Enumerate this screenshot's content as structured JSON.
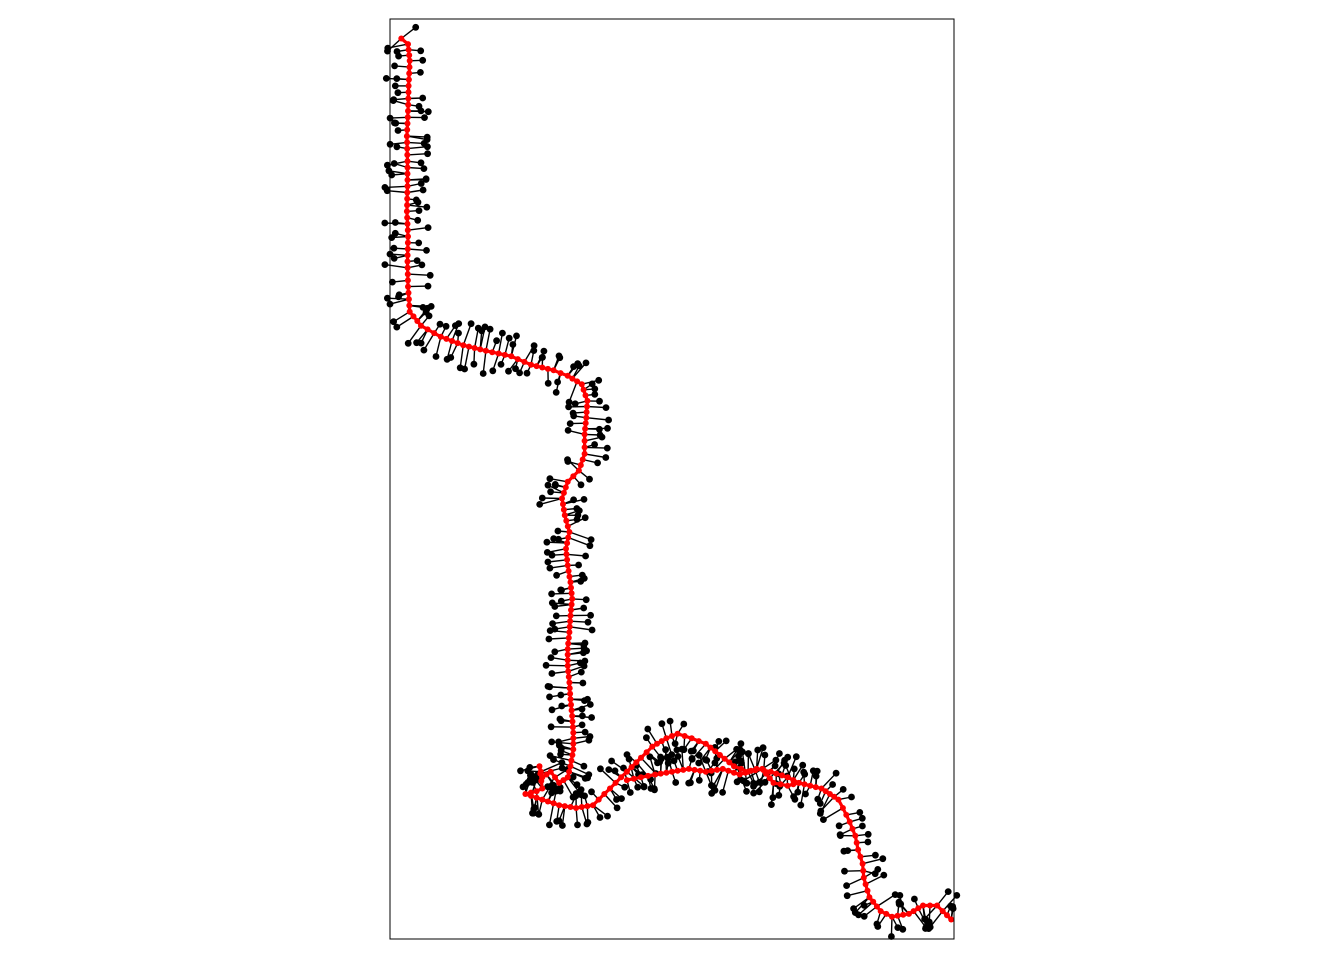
{
  "chart_data": {
    "type": "scatter",
    "title": "",
    "xlabel": "",
    "ylabel": "",
    "axes_visible": false,
    "grid": false,
    "legend": "none",
    "xlim": [
      0,
      100
    ],
    "ylim": [
      0,
      165
    ],
    "colors": {
      "centerline": "#ff0000",
      "points": "#000000",
      "frame": "#000000",
      "background": "#ffffff"
    },
    "point_jitter_spacing": 1.4,
    "series": [
      {
        "role": "path-points",
        "color": "#ff0000",
        "x": [
          2.0,
          3.2,
          3.5,
          3.3,
          3.2,
          3.0,
          3.1,
          3.1,
          3.0,
          3.2,
          3.1,
          3.2,
          3.5,
          5.5,
          9.0,
          13.0,
          17.0,
          21.5,
          25.0,
          29.0,
          31.5,
          34.0,
          35.0,
          34.8,
          34.5,
          34.5,
          33.5,
          31.5,
          30.5,
          31.0,
          31.8,
          31.2,
          31.5,
          32.0,
          32.3,
          32.0,
          31.8,
          31.5,
          31.5,
          31.8,
          32.0,
          32.3,
          32.5,
          32.5,
          32.0,
          31.5,
          30.0,
          28.5,
          27.0,
          26.5,
          27.0,
          26.0,
          24.0,
          27.0,
          30.0,
          33.0,
          36.0,
          38.0,
          40.0,
          42.0,
          44.5,
          46.5,
          49.0,
          51.0,
          53.5,
          56.0,
          58.5,
          61.0,
          63.5,
          66.0,
          68.0,
          70.5,
          72.5,
          74.5,
          76.5,
          78.0,
          79.5,
          80.3,
          81.5,
          82.5,
          83.0,
          83.8,
          84.0,
          85.0,
          87.0,
          89.0,
          92.0,
          94.5,
          97.0,
          98.0,
          99.5
        ],
        "y": [
          161.5,
          160.5,
          157.5,
          153.0,
          148.5,
          144.0,
          139.5,
          135.0,
          130.5,
          126.0,
          121.5,
          117.0,
          112.5,
          110.0,
          108.0,
          106.5,
          105.5,
          104.5,
          103.0,
          102.0,
          101.0,
          99.5,
          96.5,
          93.5,
          90.5,
          87.0,
          84.0,
          82.0,
          79.0,
          76.0,
          73.0,
          70.0,
          67.0,
          64.0,
          61.0,
          58.0,
          55.0,
          52.0,
          49.0,
          46.0,
          43.0,
          40.0,
          37.0,
          34.0,
          31.0,
          29.0,
          28.0,
          30.0,
          29.0,
          31.0,
          27.0,
          26.5,
          26.0,
          25.0,
          24.0,
          23.5,
          24.0,
          26.0,
          28.0,
          30.0,
          32.5,
          34.5,
          36.0,
          36.8,
          36.0,
          35.0,
          33.0,
          31.0,
          30.0,
          30.5,
          28.0,
          27.5,
          28.0,
          27.5,
          27.0,
          26.0,
          25.0,
          23.5,
          21.0,
          18.5,
          16.0,
          13.5,
          11.0,
          7.5,
          5.0,
          4.0,
          4.5,
          6.0,
          6.0,
          5.0,
          3.5
        ]
      },
      {
        "role": "branch-points",
        "color": "#ff0000",
        "x": [
          42.0,
          44.5,
          47.0,
          50.0,
          53.0,
          56.0,
          59.0,
          62.0,
          65.0,
          67.5,
          70.5,
          72.5
        ],
        "y": [
          28.5,
          29.0,
          29.5,
          30.0,
          30.5,
          30.0,
          30.5,
          29.5,
          30.5,
          30.0,
          29.0,
          28.0
        ]
      }
    ]
  }
}
